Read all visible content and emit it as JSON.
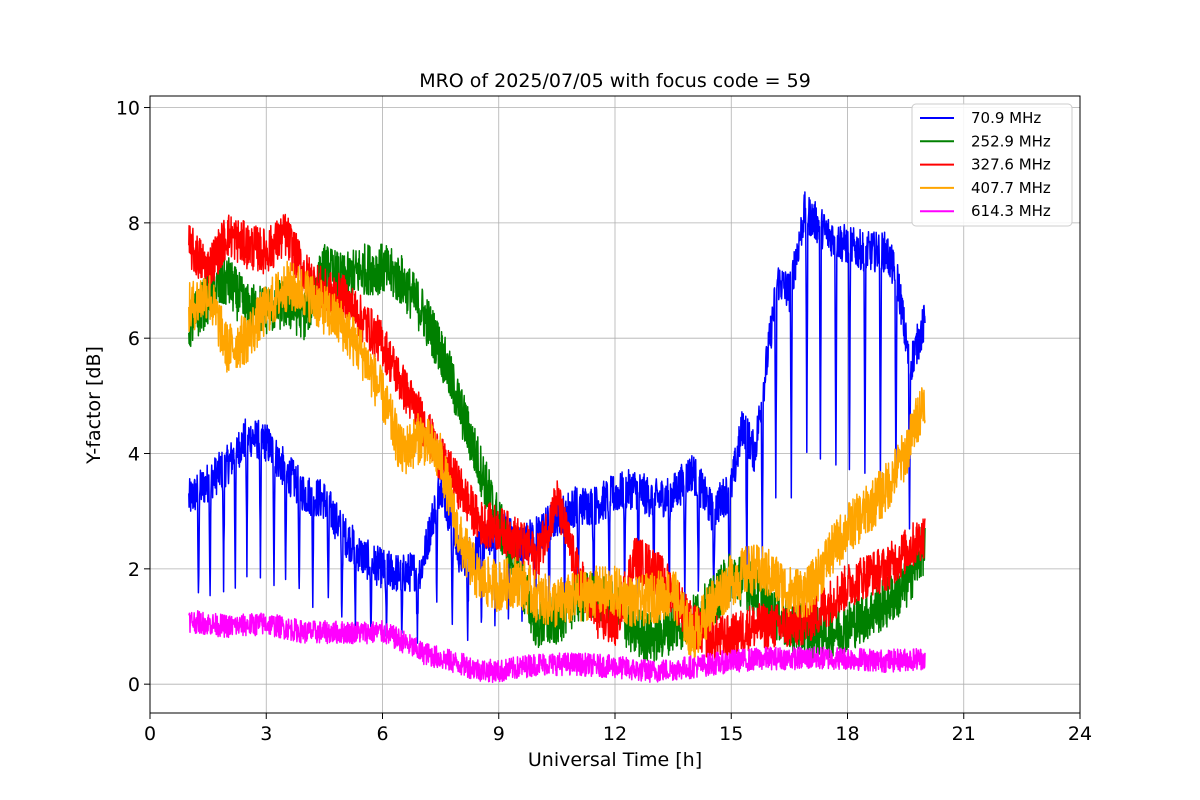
{
  "chart_data": {
    "type": "line",
    "title": "MRO of 2025/07/05 with focus code = 59",
    "xlabel": "Universal Time [h]",
    "ylabel": "Y-factor [dB]",
    "xlim": [
      0,
      24
    ],
    "ylim": [
      -0.5,
      10.2
    ],
    "xticks": [
      0,
      3,
      6,
      9,
      12,
      15,
      18,
      21,
      24
    ],
    "yticks": [
      0,
      2,
      4,
      6,
      8,
      10
    ],
    "grid": true,
    "legend_position": "top-right",
    "series": [
      {
        "name": " 70.9 MHz",
        "color": "#0000ff",
        "noise": 0.35,
        "points": [
          [
            1.0,
            3.2
          ],
          [
            1.5,
            3.5
          ],
          [
            2.0,
            3.8
          ],
          [
            2.5,
            4.3
          ],
          [
            3.0,
            4.2
          ],
          [
            3.5,
            3.7
          ],
          [
            4.0,
            3.3
          ],
          [
            4.5,
            3.2
          ],
          [
            5.0,
            2.6
          ],
          [
            5.5,
            2.2
          ],
          [
            6.0,
            2.0
          ],
          [
            6.5,
            1.9
          ],
          [
            7.0,
            2.0
          ],
          [
            7.5,
            3.5
          ],
          [
            8.0,
            2.2
          ],
          [
            8.5,
            2.3
          ],
          [
            9.0,
            2.8
          ],
          [
            9.5,
            2.4
          ],
          [
            10.0,
            2.6
          ],
          [
            10.5,
            2.9
          ],
          [
            11.0,
            3.1
          ],
          [
            11.5,
            3.1
          ],
          [
            12.0,
            3.3
          ],
          [
            12.5,
            3.4
          ],
          [
            13.0,
            3.2
          ],
          [
            13.5,
            3.3
          ],
          [
            14.0,
            3.7
          ],
          [
            14.5,
            3.0
          ],
          [
            15.0,
            3.4
          ],
          [
            15.3,
            4.5
          ],
          [
            15.6,
            4.0
          ],
          [
            15.9,
            5.5
          ],
          [
            16.2,
            7.0
          ],
          [
            16.5,
            6.8
          ],
          [
            16.9,
            8.2
          ],
          [
            17.5,
            7.8
          ],
          [
            18.0,
            7.6
          ],
          [
            18.5,
            7.5
          ],
          [
            19.0,
            7.5
          ],
          [
            19.3,
            7.0
          ],
          [
            19.6,
            5.5
          ],
          [
            20.0,
            6.3
          ]
        ],
        "dips": [
          1.25,
          1.55,
          1.9,
          2.2,
          2.5,
          2.85,
          3.2,
          3.5,
          3.85,
          4.2,
          4.6,
          4.95,
          5.3,
          5.7,
          6.1,
          6.5,
          6.9,
          7.4,
          7.8,
          8.2,
          8.55,
          8.9,
          9.25,
          9.6,
          9.95,
          10.3,
          10.7,
          11.05,
          11.45,
          11.85,
          12.25,
          12.6,
          13.0,
          13.4,
          13.8,
          14.15,
          14.55,
          14.95,
          15.4,
          15.8,
          16.15,
          16.55,
          16.95,
          17.3,
          17.7,
          18.05,
          18.45,
          18.85,
          19.25,
          19.6
        ],
        "dip_depth": 0.5
      },
      {
        "name": "252.9 MHz",
        "color": "#008000",
        "noise": 0.45,
        "points": [
          [
            1.0,
            6.2
          ],
          [
            1.5,
            6.7
          ],
          [
            2.0,
            7.0
          ],
          [
            2.5,
            6.5
          ],
          [
            3.0,
            6.5
          ],
          [
            3.5,
            6.6
          ],
          [
            4.0,
            6.4
          ],
          [
            4.5,
            7.2
          ],
          [
            5.0,
            7.0
          ],
          [
            5.5,
            7.2
          ],
          [
            6.0,
            7.2
          ],
          [
            6.5,
            7.0
          ],
          [
            7.0,
            6.5
          ],
          [
            7.5,
            5.8
          ],
          [
            8.0,
            4.8
          ],
          [
            8.5,
            3.8
          ],
          [
            9.0,
            2.8
          ],
          [
            9.5,
            1.9
          ],
          [
            10.0,
            1.0
          ],
          [
            10.5,
            1.1
          ],
          [
            11.0,
            1.5
          ],
          [
            11.5,
            1.5
          ],
          [
            12.0,
            1.3
          ],
          [
            12.5,
            0.9
          ],
          [
            13.0,
            0.8
          ],
          [
            13.5,
            1.0
          ],
          [
            14.0,
            1.1
          ],
          [
            14.5,
            1.4
          ],
          [
            15.0,
            1.9
          ],
          [
            15.5,
            1.7
          ],
          [
            16.0,
            1.3
          ],
          [
            16.5,
            1.0
          ],
          [
            17.0,
            0.9
          ],
          [
            17.5,
            0.9
          ],
          [
            18.0,
            1.0
          ],
          [
            18.5,
            1.2
          ],
          [
            19.0,
            1.4
          ],
          [
            19.5,
            1.7
          ],
          [
            20.0,
            2.4
          ]
        ],
        "dips": [],
        "dip_depth": 0
      },
      {
        "name": "327.6 MHz",
        "color": "#ff0000",
        "noise": 0.4,
        "points": [
          [
            1.0,
            7.6
          ],
          [
            1.5,
            7.2
          ],
          [
            2.0,
            7.8
          ],
          [
            2.5,
            7.6
          ],
          [
            3.0,
            7.5
          ],
          [
            3.5,
            7.8
          ],
          [
            4.0,
            7.1
          ],
          [
            4.5,
            6.8
          ],
          [
            5.0,
            6.7
          ],
          [
            5.5,
            6.3
          ],
          [
            6.0,
            5.9
          ],
          [
            6.5,
            5.2
          ],
          [
            7.0,
            4.6
          ],
          [
            7.5,
            3.9
          ],
          [
            8.0,
            3.4
          ],
          [
            8.5,
            2.8
          ],
          [
            9.0,
            2.7
          ],
          [
            9.5,
            2.5
          ],
          [
            10.0,
            2.2
          ],
          [
            10.5,
            3.2
          ],
          [
            11.0,
            2.0
          ],
          [
            11.5,
            1.2
          ],
          [
            12.0,
            1.0
          ],
          [
            12.5,
            2.2
          ],
          [
            13.0,
            2.0
          ],
          [
            13.5,
            1.6
          ],
          [
            14.0,
            1.0
          ],
          [
            14.5,
            0.8
          ],
          [
            15.0,
            0.8
          ],
          [
            15.5,
            1.0
          ],
          [
            16.0,
            1.0
          ],
          [
            16.5,
            1.0
          ],
          [
            17.0,
            1.1
          ],
          [
            17.5,
            1.4
          ],
          [
            18.0,
            1.7
          ],
          [
            18.5,
            1.9
          ],
          [
            19.0,
            2.0
          ],
          [
            19.5,
            2.3
          ],
          [
            20.0,
            2.6
          ]
        ],
        "dips": [],
        "dip_depth": 0
      },
      {
        "name": "407.7 MHz",
        "color": "#ffa500",
        "noise": 0.45,
        "points": [
          [
            1.0,
            6.5
          ],
          [
            1.5,
            6.8
          ],
          [
            2.0,
            5.8
          ],
          [
            2.5,
            6.0
          ],
          [
            3.0,
            6.5
          ],
          [
            3.5,
            6.9
          ],
          [
            4.0,
            6.8
          ],
          [
            4.5,
            6.5
          ],
          [
            5.0,
            6.2
          ],
          [
            5.5,
            5.7
          ],
          [
            6.0,
            5.0
          ],
          [
            6.5,
            4.0
          ],
          [
            7.0,
            4.3
          ],
          [
            7.5,
            3.9
          ],
          [
            8.0,
            2.5
          ],
          [
            8.5,
            1.8
          ],
          [
            9.0,
            1.7
          ],
          [
            9.5,
            1.8
          ],
          [
            10.0,
            1.5
          ],
          [
            10.5,
            1.4
          ],
          [
            11.0,
            1.5
          ],
          [
            11.5,
            1.6
          ],
          [
            12.0,
            1.6
          ],
          [
            12.5,
            1.4
          ],
          [
            13.0,
            1.5
          ],
          [
            13.5,
            1.6
          ],
          [
            14.0,
            0.8
          ],
          [
            14.5,
            1.4
          ],
          [
            15.0,
            1.8
          ],
          [
            15.5,
            2.0
          ],
          [
            16.0,
            1.9
          ],
          [
            16.5,
            1.6
          ],
          [
            17.0,
            1.6
          ],
          [
            17.5,
            2.2
          ],
          [
            18.0,
            2.7
          ],
          [
            18.5,
            3.0
          ],
          [
            19.0,
            3.4
          ],
          [
            19.5,
            4.0
          ],
          [
            20.0,
            5.0
          ]
        ],
        "dips": [],
        "dip_depth": 0
      },
      {
        "name": "614.3 MHz",
        "color": "#ff00ff",
        "noise": 0.2,
        "points": [
          [
            1.0,
            1.1
          ],
          [
            2.0,
            1.0
          ],
          [
            3.0,
            1.05
          ],
          [
            4.0,
            0.9
          ],
          [
            5.0,
            0.9
          ],
          [
            6.0,
            0.9
          ],
          [
            6.5,
            0.75
          ],
          [
            7.0,
            0.55
          ],
          [
            7.5,
            0.45
          ],
          [
            8.0,
            0.35
          ],
          [
            8.5,
            0.25
          ],
          [
            9.0,
            0.22
          ],
          [
            10.0,
            0.35
          ],
          [
            11.0,
            0.35
          ],
          [
            12.0,
            0.3
          ],
          [
            12.5,
            0.25
          ],
          [
            13.0,
            0.22
          ],
          [
            14.0,
            0.3
          ],
          [
            15.0,
            0.4
          ],
          [
            16.0,
            0.45
          ],
          [
            17.0,
            0.45
          ],
          [
            18.0,
            0.45
          ],
          [
            19.0,
            0.4
          ],
          [
            20.0,
            0.45
          ]
        ],
        "dips": [],
        "dip_depth": 0
      }
    ]
  }
}
